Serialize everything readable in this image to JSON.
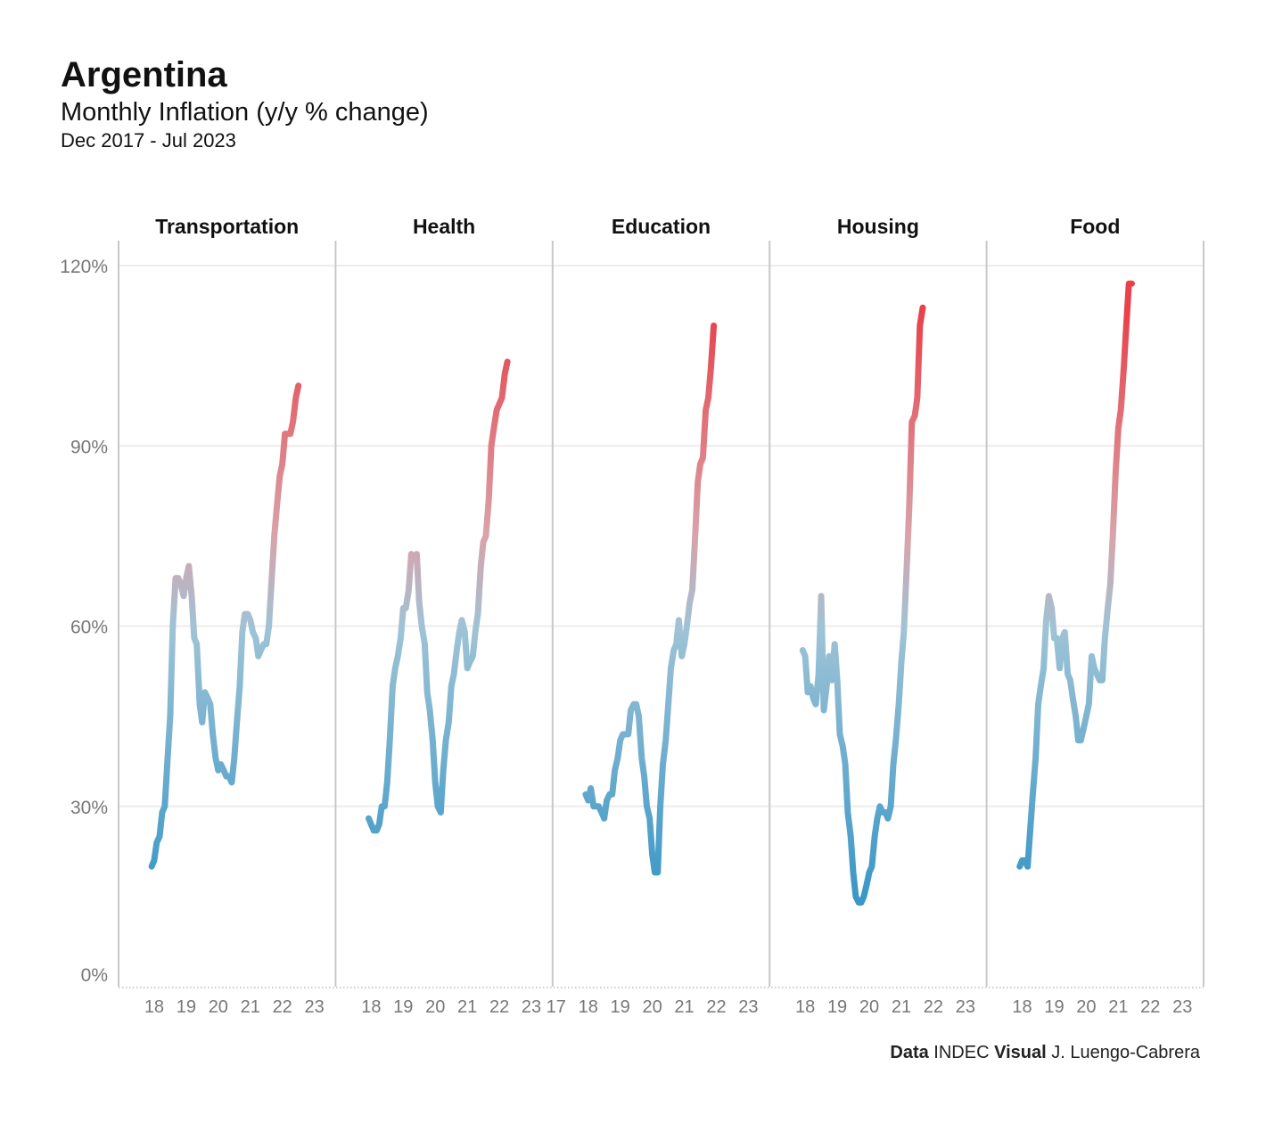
{
  "header": {
    "title": "Argentina",
    "subtitle": "Monthly Inflation (y/y % change)",
    "date_range": "Dec 2017 - Jul 2023"
  },
  "caption": {
    "data_label": "Data",
    "data_source": "INDEC",
    "visual_label": "Visual",
    "visual_author": "J. Luengo-Cabrera"
  },
  "colors": {
    "low": "#3a97c6",
    "mid": "#9fc3d6",
    "high": "#e8424a",
    "grid": "#ececec",
    "axis": "#c8c8c8"
  },
  "chart_data": {
    "type": "line",
    "title": "Monthly Inflation (y/y % change)",
    "ylabel": "",
    "xlabel": "",
    "ylim": [
      0,
      120
    ],
    "yticks": [
      0,
      30,
      60,
      90,
      120
    ],
    "ytick_labels": [
      "0%",
      "30%",
      "60%",
      "90%",
      "120%"
    ],
    "x_range": [
      2017.0,
      2023.55
    ],
    "panels": [
      {
        "name": "Transportation",
        "xtick_labels": [
          "18",
          "19",
          "20",
          "21",
          "22",
          "23"
        ],
        "points": [
          [
            2017.92,
            20
          ],
          [
            2018.0,
            21
          ],
          [
            2018.08,
            24
          ],
          [
            2018.17,
            25
          ],
          [
            2018.25,
            29
          ],
          [
            2018.33,
            30
          ],
          [
            2018.42,
            38
          ],
          [
            2018.5,
            45
          ],
          [
            2018.58,
            60
          ],
          [
            2018.67,
            68
          ],
          [
            2018.75,
            68
          ],
          [
            2018.83,
            67
          ],
          [
            2018.92,
            65
          ],
          [
            2019.0,
            68
          ],
          [
            2019.08,
            70
          ],
          [
            2019.17,
            65
          ],
          [
            2019.25,
            58
          ],
          [
            2019.33,
            57
          ],
          [
            2019.42,
            47
          ],
          [
            2019.5,
            44
          ],
          [
            2019.58,
            49
          ],
          [
            2019.67,
            48
          ],
          [
            2019.75,
            47
          ],
          [
            2019.83,
            42
          ],
          [
            2019.92,
            38
          ],
          [
            2020.0,
            36
          ],
          [
            2020.08,
            37
          ],
          [
            2020.17,
            36
          ],
          [
            2020.25,
            35
          ],
          [
            2020.33,
            35
          ],
          [
            2020.42,
            34
          ],
          [
            2020.5,
            38
          ],
          [
            2020.58,
            44
          ],
          [
            2020.67,
            50
          ],
          [
            2020.75,
            59
          ],
          [
            2020.83,
            62
          ],
          [
            2020.92,
            62
          ],
          [
            2021.0,
            61
          ],
          [
            2021.08,
            59
          ],
          [
            2021.17,
            58
          ],
          [
            2021.25,
            55
          ],
          [
            2021.33,
            56
          ],
          [
            2021.42,
            57
          ],
          [
            2021.5,
            57
          ],
          [
            2021.58,
            60
          ],
          [
            2021.67,
            68
          ],
          [
            2021.75,
            75
          ],
          [
            2021.83,
            80
          ],
          [
            2021.92,
            85
          ],
          [
            2022.0,
            87
          ],
          [
            2022.08,
            92
          ],
          [
            2022.17,
            92
          ],
          [
            2022.25,
            92
          ],
          [
            2022.33,
            94
          ],
          [
            2022.42,
            98
          ],
          [
            2022.5,
            100
          ]
        ]
      },
      {
        "name": "Health",
        "xtick_labels": [
          "18",
          "19",
          "20",
          "21",
          "22",
          "23"
        ],
        "points": [
          [
            2017.92,
            28
          ],
          [
            2018.0,
            27
          ],
          [
            2018.08,
            26
          ],
          [
            2018.17,
            26
          ],
          [
            2018.25,
            27
          ],
          [
            2018.33,
            30
          ],
          [
            2018.42,
            30
          ],
          [
            2018.5,
            34
          ],
          [
            2018.58,
            41
          ],
          [
            2018.67,
            50
          ],
          [
            2018.75,
            53
          ],
          [
            2018.83,
            55
          ],
          [
            2018.92,
            58
          ],
          [
            2019.0,
            63
          ],
          [
            2019.08,
            63
          ],
          [
            2019.17,
            66
          ],
          [
            2019.25,
            72
          ],
          [
            2019.33,
            71
          ],
          [
            2019.42,
            72
          ],
          [
            2019.5,
            64
          ],
          [
            2019.58,
            60
          ],
          [
            2019.67,
            57
          ],
          [
            2019.75,
            49
          ],
          [
            2019.83,
            46
          ],
          [
            2019.92,
            41
          ],
          [
            2020.0,
            34
          ],
          [
            2020.08,
            30
          ],
          [
            2020.17,
            29
          ],
          [
            2020.25,
            36
          ],
          [
            2020.33,
            41
          ],
          [
            2020.42,
            44
          ],
          [
            2020.5,
            50
          ],
          [
            2020.58,
            52
          ],
          [
            2020.67,
            56
          ],
          [
            2020.75,
            59
          ],
          [
            2020.83,
            61
          ],
          [
            2020.92,
            59
          ],
          [
            2021.0,
            53
          ],
          [
            2021.08,
            54
          ],
          [
            2021.17,
            55
          ],
          [
            2021.25,
            59
          ],
          [
            2021.33,
            62
          ],
          [
            2021.42,
            70
          ],
          [
            2021.5,
            74
          ],
          [
            2021.58,
            75
          ],
          [
            2021.67,
            81
          ],
          [
            2021.75,
            90
          ],
          [
            2021.83,
            93
          ],
          [
            2021.92,
            96
          ],
          [
            2022.0,
            97
          ],
          [
            2022.08,
            98
          ],
          [
            2022.17,
            102
          ],
          [
            2022.25,
            104
          ]
        ]
      },
      {
        "name": "Education",
        "xtick_labels": [
          "17",
          "18",
          "19",
          "20",
          "21",
          "22",
          "23"
        ],
        "points": [
          [
            2017.92,
            32
          ],
          [
            2018.0,
            31
          ],
          [
            2018.08,
            33
          ],
          [
            2018.17,
            30
          ],
          [
            2018.25,
            30
          ],
          [
            2018.33,
            30
          ],
          [
            2018.42,
            29
          ],
          [
            2018.5,
            28
          ],
          [
            2018.58,
            31
          ],
          [
            2018.67,
            32
          ],
          [
            2018.75,
            32
          ],
          [
            2018.83,
            36
          ],
          [
            2018.92,
            38
          ],
          [
            2019.0,
            41
          ],
          [
            2019.08,
            42
          ],
          [
            2019.17,
            42
          ],
          [
            2019.25,
            42
          ],
          [
            2019.33,
            46
          ],
          [
            2019.42,
            47
          ],
          [
            2019.5,
            47
          ],
          [
            2019.58,
            45
          ],
          [
            2019.67,
            38
          ],
          [
            2019.75,
            35
          ],
          [
            2019.83,
            30
          ],
          [
            2019.92,
            28
          ],
          [
            2020.0,
            22
          ],
          [
            2020.08,
            19
          ],
          [
            2020.17,
            19
          ],
          [
            2020.25,
            30
          ],
          [
            2020.33,
            37
          ],
          [
            2020.42,
            41
          ],
          [
            2020.5,
            47
          ],
          [
            2020.58,
            53
          ],
          [
            2020.67,
            56
          ],
          [
            2020.75,
            57
          ],
          [
            2020.83,
            61
          ],
          [
            2020.92,
            55
          ],
          [
            2021.0,
            57
          ],
          [
            2021.08,
            60
          ],
          [
            2021.17,
            64
          ],
          [
            2021.25,
            66
          ],
          [
            2021.33,
            74
          ],
          [
            2021.42,
            84
          ],
          [
            2021.5,
            87
          ],
          [
            2021.58,
            88
          ],
          [
            2021.67,
            96
          ],
          [
            2021.75,
            98
          ],
          [
            2021.83,
            103
          ],
          [
            2021.92,
            110
          ]
        ]
      },
      {
        "name": "Housing",
        "xtick_labels": [
          "18",
          "19",
          "20",
          "21",
          "22",
          "23"
        ],
        "points": [
          [
            2017.92,
            56
          ],
          [
            2018.0,
            55
          ],
          [
            2018.08,
            49
          ],
          [
            2018.17,
            50
          ],
          [
            2018.25,
            48
          ],
          [
            2018.33,
            47
          ],
          [
            2018.42,
            52
          ],
          [
            2018.5,
            65
          ],
          [
            2018.58,
            46
          ],
          [
            2018.67,
            50
          ],
          [
            2018.75,
            55
          ],
          [
            2018.83,
            51
          ],
          [
            2018.92,
            57
          ],
          [
            2019.0,
            51
          ],
          [
            2019.08,
            42
          ],
          [
            2019.17,
            40
          ],
          [
            2019.25,
            37
          ],
          [
            2019.33,
            29
          ],
          [
            2019.42,
            25
          ],
          [
            2019.5,
            19
          ],
          [
            2019.58,
            15
          ],
          [
            2019.67,
            14
          ],
          [
            2019.75,
            14
          ],
          [
            2019.83,
            15
          ],
          [
            2019.92,
            17
          ],
          [
            2020.0,
            19
          ],
          [
            2020.08,
            20
          ],
          [
            2020.17,
            25
          ],
          [
            2020.25,
            28
          ],
          [
            2020.33,
            30
          ],
          [
            2020.42,
            29
          ],
          [
            2020.5,
            29
          ],
          [
            2020.58,
            28
          ],
          [
            2020.67,
            30
          ],
          [
            2020.75,
            37
          ],
          [
            2020.83,
            41
          ],
          [
            2020.92,
            47
          ],
          [
            2021.0,
            54
          ],
          [
            2021.08,
            59
          ],
          [
            2021.17,
            70
          ],
          [
            2021.25,
            80
          ],
          [
            2021.33,
            94
          ],
          [
            2021.42,
            95
          ],
          [
            2021.5,
            98
          ],
          [
            2021.58,
            110
          ],
          [
            2021.67,
            113
          ]
        ]
      },
      {
        "name": "Food",
        "xtick_labels": [
          "18",
          "19",
          "20",
          "21",
          "22",
          "23"
        ],
        "points": [
          [
            2017.92,
            20
          ],
          [
            2018.0,
            21
          ],
          [
            2018.08,
            21
          ],
          [
            2018.17,
            20
          ],
          [
            2018.25,
            26
          ],
          [
            2018.33,
            32
          ],
          [
            2018.42,
            38
          ],
          [
            2018.5,
            47
          ],
          [
            2018.58,
            50
          ],
          [
            2018.67,
            53
          ],
          [
            2018.75,
            61
          ],
          [
            2018.83,
            65
          ],
          [
            2018.92,
            63
          ],
          [
            2019.0,
            58
          ],
          [
            2019.08,
            58
          ],
          [
            2019.17,
            53
          ],
          [
            2019.25,
            58
          ],
          [
            2019.33,
            59
          ],
          [
            2019.42,
            52
          ],
          [
            2019.5,
            51
          ],
          [
            2019.58,
            48
          ],
          [
            2019.67,
            45
          ],
          [
            2019.75,
            41
          ],
          [
            2019.83,
            41
          ],
          [
            2019.92,
            43
          ],
          [
            2020.0,
            45
          ],
          [
            2020.08,
            47
          ],
          [
            2020.17,
            55
          ],
          [
            2020.25,
            53
          ],
          [
            2020.33,
            52
          ],
          [
            2020.42,
            51
          ],
          [
            2020.5,
            51
          ],
          [
            2020.58,
            58
          ],
          [
            2020.67,
            63
          ],
          [
            2020.75,
            67
          ],
          [
            2020.83,
            75
          ],
          [
            2020.92,
            86
          ],
          [
            2021.0,
            93
          ],
          [
            2021.08,
            96
          ],
          [
            2021.17,
            103
          ],
          [
            2021.25,
            110
          ],
          [
            2021.33,
            117
          ],
          [
            2021.42,
            117
          ]
        ]
      }
    ]
  }
}
